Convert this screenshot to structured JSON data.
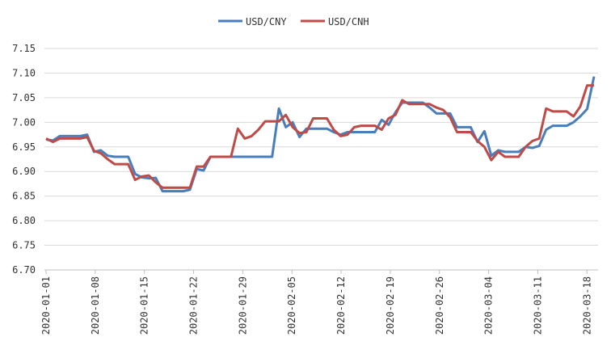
{
  "chart_data": {
    "type": "line",
    "title": "",
    "xlabel": "",
    "ylabel": "",
    "ylim": [
      6.7,
      7.15
    ],
    "yticks": [
      "6.70",
      "6.75",
      "6.80",
      "6.85",
      "6.90",
      "6.95",
      "7.00",
      "7.05",
      "7.10",
      "7.15"
    ],
    "xticks": [
      "2020-01-01",
      "2020-01-08",
      "2020-01-15",
      "2020-01-22",
      "2020-01-29",
      "2020-02-05",
      "2020-02-12",
      "2020-02-19",
      "2020-02-26",
      "2020-03-04",
      "2020-03-11",
      "2020-03-18"
    ],
    "grid": "horizontal",
    "legend_position": "top-center",
    "series": [
      {
        "name": "USD/CNY",
        "color": "#4a7ebb",
        "values": [
          6.965,
          6.963,
          6.972,
          6.972,
          6.972,
          6.972,
          6.975,
          6.94,
          6.943,
          6.932,
          6.93,
          6.93,
          6.93,
          6.895,
          6.888,
          6.886,
          6.887,
          6.86,
          6.86,
          6.86,
          6.86,
          6.863,
          6.905,
          6.902,
          6.93,
          6.93,
          6.93,
          6.93,
          6.93,
          6.93,
          6.93,
          6.93,
          6.93,
          6.93,
          7.028,
          6.99,
          7.0,
          6.97,
          6.987,
          6.987,
          6.987,
          6.987,
          6.98,
          6.975,
          6.98,
          6.98,
          6.98,
          6.98,
          6.98,
          7.005,
          6.995,
          7.02,
          7.04,
          7.04,
          7.04,
          7.04,
          7.03,
          7.018,
          7.018,
          7.018,
          6.99,
          6.99,
          6.99,
          6.96,
          6.982,
          6.932,
          6.943,
          6.94,
          6.94,
          6.94,
          6.95,
          6.948,
          6.952,
          6.985,
          6.993,
          6.993,
          6.993,
          7.0,
          7.012,
          7.027,
          7.093
        ]
      },
      {
        "name": "USD/CNH",
        "color": "#be4b48",
        "values": [
          6.967,
          6.96,
          6.967,
          6.967,
          6.967,
          6.967,
          6.97,
          6.942,
          6.937,
          6.925,
          6.915,
          6.915,
          6.915,
          6.883,
          6.89,
          6.892,
          6.878,
          6.867,
          6.867,
          6.867,
          6.867,
          6.867,
          6.91,
          6.91,
          6.93,
          6.93,
          6.93,
          6.93,
          6.987,
          6.967,
          6.972,
          6.985,
          7.002,
          7.002,
          7.002,
          7.015,
          6.99,
          6.978,
          6.98,
          7.008,
          7.008,
          7.008,
          6.985,
          6.972,
          6.975,
          6.99,
          6.993,
          6.993,
          6.993,
          6.985,
          7.008,
          7.015,
          7.045,
          7.037,
          7.037,
          7.037,
          7.037,
          7.03,
          7.025,
          7.01,
          6.98,
          6.98,
          6.98,
          6.962,
          6.95,
          6.923,
          6.94,
          6.93,
          6.93,
          6.93,
          6.95,
          6.962,
          6.967,
          7.028,
          7.022,
          7.022,
          7.022,
          7.012,
          7.032,
          7.075,
          7.075
        ]
      }
    ]
  }
}
